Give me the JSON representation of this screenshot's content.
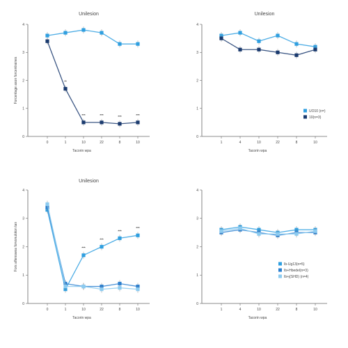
{
  "colors": {
    "axis": "#666666",
    "text": "#444444",
    "light_blue": "#2f9fe0",
    "dark_blue": "#1a3a6e",
    "mid_blue": "#2a7fd0",
    "line_light": "#8ccbf0"
  },
  "chart_data": [
    {
      "type": "line",
      "title": "Unilesion",
      "xlabel": "Tacorin wpa",
      "ylabel": "Forcentage ason forcentraines",
      "x": [
        "0",
        "1",
        "10",
        "22",
        "8",
        "10"
      ],
      "ylim": [
        0,
        4
      ],
      "yticks": [
        "0",
        "1",
        "2",
        "3",
        "4"
      ],
      "series": [
        {
          "name": "UO10 (n=)",
          "color_key": "light_blue",
          "values": [
            3.6,
            3.7,
            3.8,
            3.7,
            3.3,
            3.3
          ]
        },
        {
          "name": "10(n=3)",
          "color_key": "dark_blue",
          "values": [
            3.4,
            1.7,
            0.5,
            0.5,
            0.45,
            0.5
          ]
        }
      ],
      "annotations": [
        {
          "x_index": 1,
          "text": "**"
        },
        {
          "x_index": 2,
          "text": "***"
        },
        {
          "x_index": 3,
          "text": "***"
        },
        {
          "x_index": 4,
          "text": "***"
        },
        {
          "x_index": 5,
          "text": "***"
        }
      ],
      "legend": "right"
    },
    {
      "type": "line",
      "title": "Unilesion",
      "xlabel": "Tacorin wpa",
      "ylabel": "",
      "x": [
        "1",
        "4",
        "10",
        "22",
        "8",
        "10"
      ],
      "ylim": [
        0,
        4
      ],
      "yticks": [
        "0",
        "1",
        "2",
        "3",
        "4"
      ],
      "series": [
        {
          "name": "UO10 (n=)",
          "color_key": "light_blue",
          "values": [
            3.6,
            3.7,
            3.4,
            3.6,
            3.3,
            3.2
          ]
        },
        {
          "name": "10(n=3)",
          "color_key": "dark_blue",
          "values": [
            3.5,
            3.1,
            3.1,
            3.0,
            2.9,
            3.1
          ]
        }
      ],
      "annotations": [],
      "legend": "bottom-right"
    },
    {
      "type": "line",
      "title": "Unilesion",
      "xlabel": "Tacorin wpa",
      "ylabel": "Fors aftenswea forvonuloton tan",
      "x": [
        "0",
        "1",
        "10",
        "22",
        "8",
        "10"
      ],
      "ylim": [
        0,
        4
      ],
      "yticks": [
        "0",
        "1",
        "2",
        "3",
        "4"
      ],
      "series": [
        {
          "name": "Ib-Ug13(n=5)",
          "color_key": "light_blue",
          "values": [
            3.3,
            0.5,
            1.7,
            2.0,
            2.3,
            2.4
          ]
        },
        {
          "name": "Ib+Hbedel(n=3)",
          "color_key": "mid_blue",
          "values": [
            3.4,
            0.7,
            0.6,
            0.6,
            0.7,
            0.6
          ]
        },
        {
          "name": "Ib+j(SHD) (n=4)",
          "color_key": "line_light",
          "values": [
            3.5,
            0.6,
            0.6,
            0.5,
            0.55,
            0.5
          ]
        }
      ],
      "annotations": [
        {
          "x_index": 2,
          "text": "***"
        },
        {
          "x_index": 3,
          "text": "***"
        },
        {
          "x_index": 4,
          "text": "***"
        },
        {
          "x_index": 5,
          "text": "***"
        }
      ],
      "legend": "none"
    },
    {
      "type": "line",
      "title": "",
      "xlabel": "Tacorin wpa",
      "ylabel": "",
      "x": [
        "1",
        "4",
        "10",
        "22",
        "8",
        "10"
      ],
      "ylim": [
        0,
        4
      ],
      "yticks": [
        "0",
        "1",
        "2",
        "3",
        "4"
      ],
      "series": [
        {
          "name": "Ib-Ug13(n=5)",
          "color_key": "light_blue",
          "values": [
            2.6,
            2.7,
            2.6,
            2.5,
            2.6,
            2.6
          ]
        },
        {
          "name": "Ib+Hbedel(n=3)",
          "color_key": "mid_blue",
          "values": [
            2.5,
            2.6,
            2.5,
            2.4,
            2.5,
            2.5
          ]
        },
        {
          "name": "Ib+j(SHD) (n=4)",
          "color_key": "line_light",
          "values": [
            2.55,
            2.65,
            2.45,
            2.45,
            2.45,
            2.55
          ]
        }
      ],
      "annotations": [],
      "legend": "bottom-right"
    }
  ]
}
